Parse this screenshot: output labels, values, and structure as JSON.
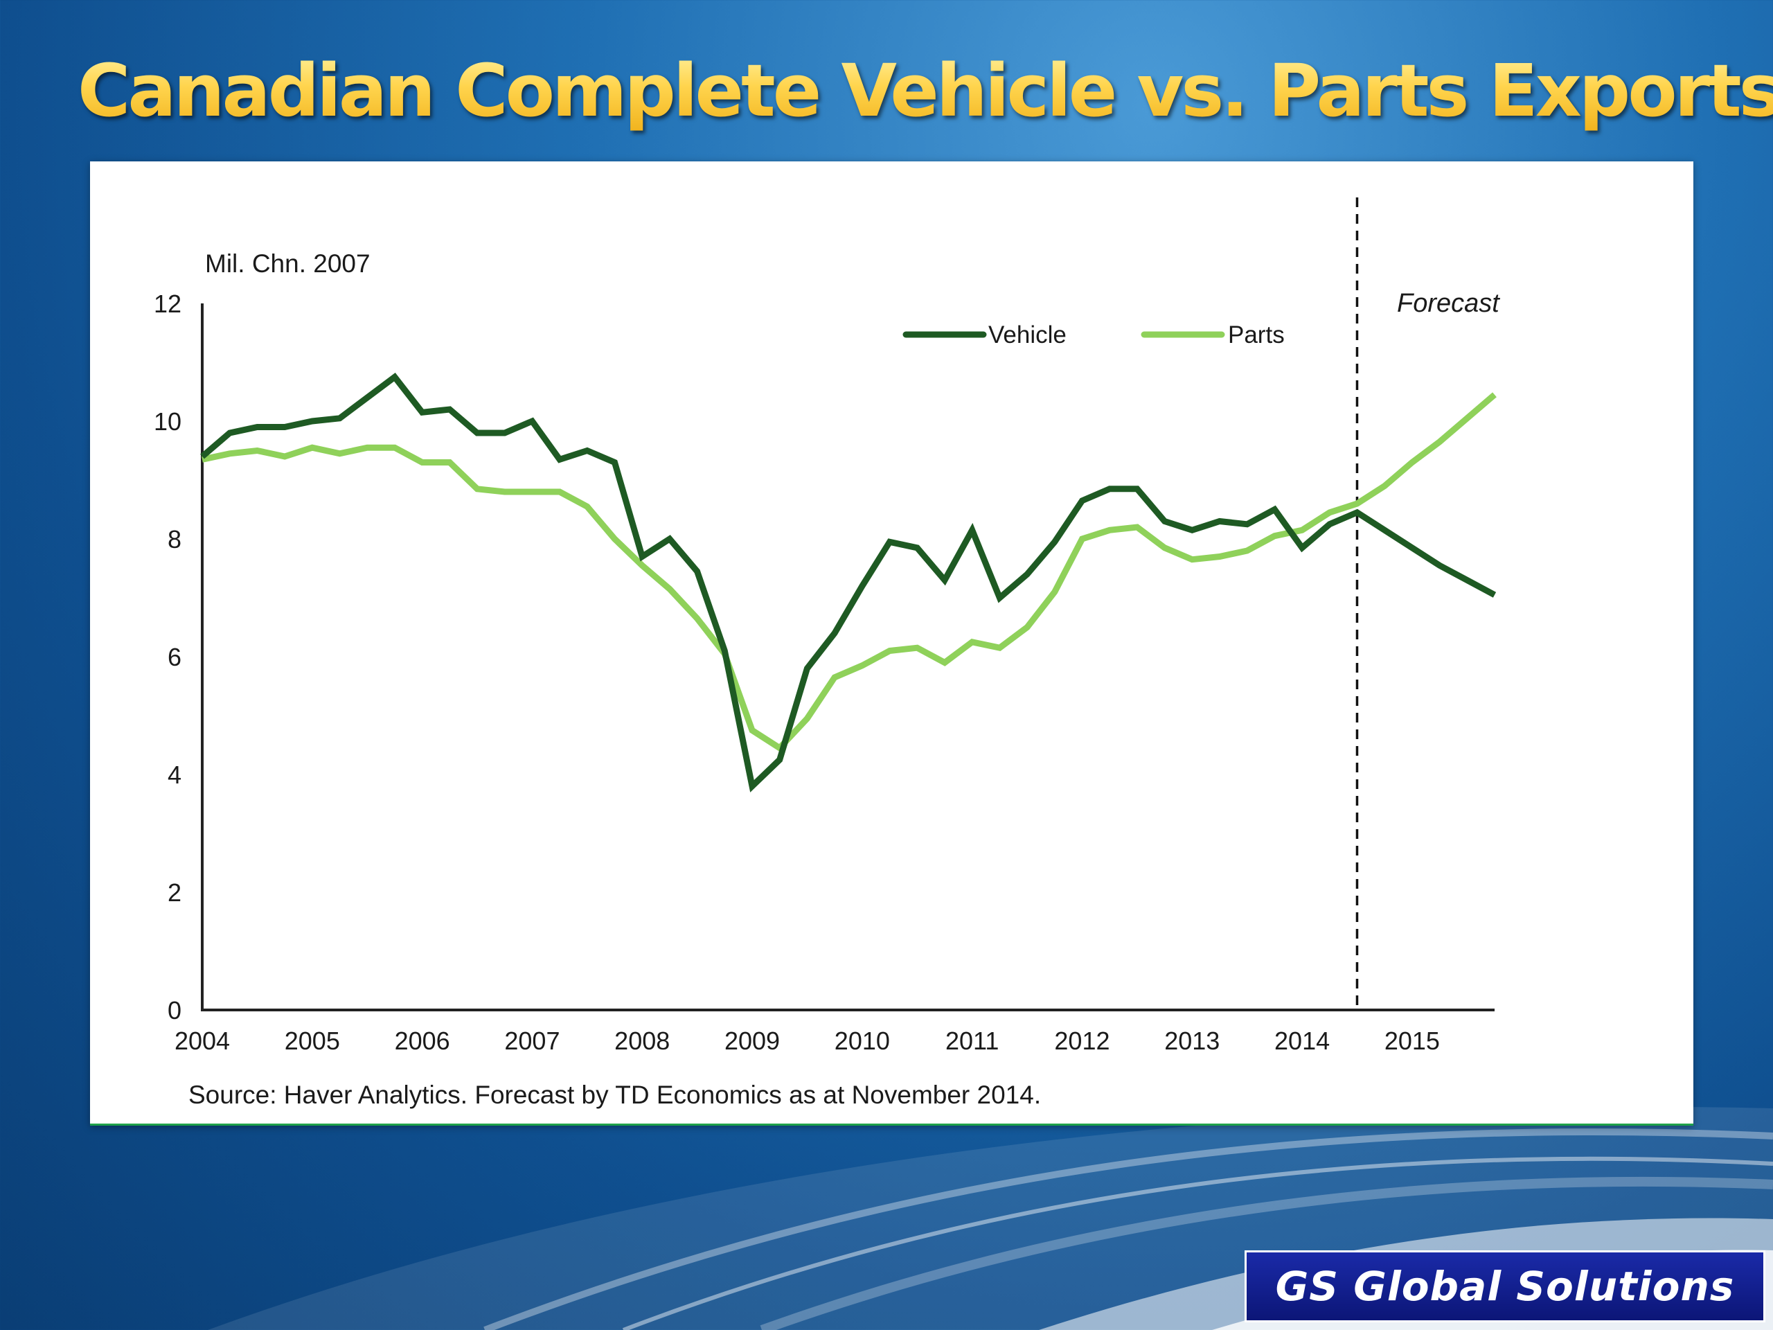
{
  "slide": {
    "title": "Canadian Complete Vehicle vs. Parts Exports",
    "brand": "GS Global Solutions"
  },
  "colors": {
    "vehicle": "#1e5a23",
    "parts": "#8fd15a",
    "title": "#ffd24a",
    "brand_bg": "#12209a"
  },
  "chart_data": {
    "type": "line",
    "title": "",
    "unit_label": "Mil. Chn. 2007",
    "xlabel": "",
    "ylabel": "",
    "x_ticks": [
      "2004",
      "2005",
      "2006",
      "2007",
      "2008",
      "2009",
      "2010",
      "2011",
      "2012",
      "2013",
      "2014",
      "2015"
    ],
    "y_ticks": [
      "0",
      "2",
      "4",
      "6",
      "8",
      "10",
      "12"
    ],
    "xlim": [
      2004.0,
      2015.75
    ],
    "ylim": [
      0,
      12
    ],
    "grid": false,
    "legend_position": "top-center",
    "forecast_start": 2014.5,
    "forecast_label": "Forecast",
    "x": [
      2004.0,
      2004.25,
      2004.5,
      2004.75,
      2005.0,
      2005.25,
      2005.5,
      2005.75,
      2006.0,
      2006.25,
      2006.5,
      2006.75,
      2007.0,
      2007.25,
      2007.5,
      2007.75,
      2008.0,
      2008.25,
      2008.5,
      2008.75,
      2009.0,
      2009.25,
      2009.5,
      2009.75,
      2010.0,
      2010.25,
      2010.5,
      2010.75,
      2011.0,
      2011.25,
      2011.5,
      2011.75,
      2012.0,
      2012.25,
      2012.5,
      2012.75,
      2013.0,
      2013.25,
      2013.5,
      2013.75,
      2014.0,
      2014.25,
      2014.5,
      2014.75,
      2015.0,
      2015.25,
      2015.5,
      2015.75
    ],
    "series": [
      {
        "name": "Vehicle",
        "values": [
          9.4,
          9.8,
          9.9,
          9.9,
          10.0,
          10.05,
          10.4,
          10.75,
          10.15,
          10.2,
          9.8,
          9.8,
          10.0,
          9.35,
          9.5,
          9.3,
          7.7,
          8.0,
          7.45,
          6.1,
          3.8,
          4.25,
          5.8,
          6.4,
          7.2,
          7.95,
          7.85,
          7.3,
          8.15,
          7.0,
          7.4,
          7.95,
          8.65,
          8.85,
          8.85,
          8.3,
          8.15,
          8.3,
          8.25,
          8.5,
          7.85,
          8.25,
          8.45,
          8.15,
          7.85,
          7.55,
          7.3,
          7.05
        ]
      },
      {
        "name": "Parts",
        "values": [
          9.35,
          9.45,
          9.5,
          9.4,
          9.55,
          9.45,
          9.55,
          9.55,
          9.3,
          9.3,
          8.85,
          8.8,
          8.8,
          8.8,
          8.55,
          8.0,
          7.55,
          7.15,
          6.65,
          6.05,
          4.75,
          4.45,
          4.95,
          5.65,
          5.85,
          6.1,
          6.15,
          5.9,
          6.25,
          6.15,
          6.5,
          7.1,
          8.0,
          8.15,
          8.2,
          7.85,
          7.65,
          7.7,
          7.8,
          8.05,
          8.15,
          8.45,
          8.6,
          8.9,
          9.3,
          9.65,
          10.05,
          10.45
        ]
      }
    ],
    "source_note": "Source: Haver Analytics. Forecast by TD Economics as at November 2014."
  }
}
